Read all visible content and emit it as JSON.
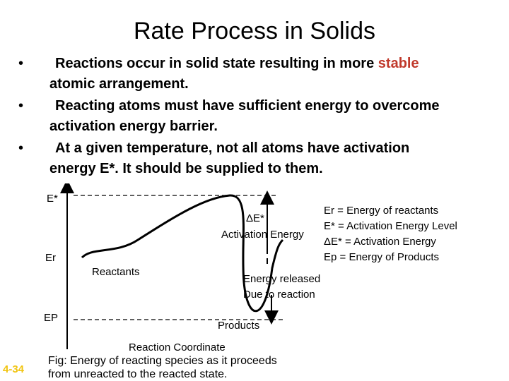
{
  "title": "Rate Process in Solids",
  "bullets": [
    {
      "lines": [
        "Reactions occur in solid state resulting in more ",
        "atomic arrangement."
      ],
      "highlight": "stable",
      "highlight_color": "#c0392b"
    },
    {
      "lines": [
        "Reacting atoms must have sufficient energy to overcome",
        "activation energy barrier."
      ]
    },
    {
      "lines": [
        "At a given temperature, not all atoms have activation",
        "energy E*. It should be supplied to them."
      ]
    }
  ],
  "bullet_symbol": "•",
  "diagram": {
    "y_level_labels": {
      "e_star": "E*",
      "e_r": "Er",
      "e_p": "EP"
    },
    "delta_e_label": "ΔE*",
    "activation_energy_label": "Activation Energy",
    "reactants_label": "Reactants",
    "products_label": "Products",
    "energy_released_lines": [
      "Energy released",
      "Due to reaction"
    ],
    "x_axis_label": "Reaction Coordinate"
  },
  "legend": [
    "Er = Energy of reactants",
    "E* = Activation Energy Level",
    "ΔE* = Activation Energy",
    "Ep = Energy of Products"
  ],
  "caption_lines": [
    "Fig: Energy of reacting species as it proceeds",
    "from unreacted to the reacted state."
  ],
  "slide_number": "4-34",
  "colors": {
    "accent": "#c0392b",
    "slide_number": "#f1c40f",
    "curve": "#000000"
  }
}
